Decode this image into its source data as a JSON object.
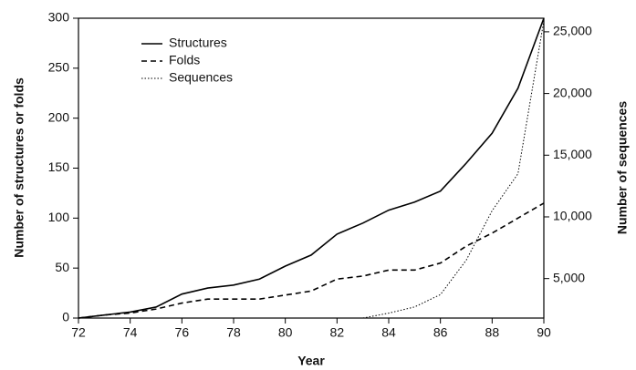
{
  "chart_data": {
    "type": "line",
    "xlabel": "Year",
    "ylabel": "Number of structures or folds",
    "y2label": "Number of sequences",
    "x": [
      72,
      73,
      74,
      75,
      76,
      77,
      78,
      79,
      80,
      81,
      82,
      83,
      84,
      85,
      86,
      87,
      88,
      89,
      90
    ],
    "xlim": [
      72,
      90
    ],
    "xticks": [
      72,
      74,
      76,
      78,
      80,
      82,
      84,
      86,
      88,
      90
    ],
    "ylim": [
      0,
      300
    ],
    "yticks": [
      0,
      50,
      100,
      150,
      200,
      250,
      300
    ],
    "y2lim": [
      1800,
      26100
    ],
    "y2ticks": [
      {
        "value": 5000,
        "label": "5,000"
      },
      {
        "value": 10000,
        "label": "10,000"
      },
      {
        "value": 15000,
        "label": "15,000"
      },
      {
        "value": 20000,
        "label": "20,000"
      },
      {
        "value": 25000,
        "label": "25,000"
      }
    ],
    "legend": "upper left",
    "series": [
      {
        "name": "Structures",
        "color": "#000000",
        "dash": "solid",
        "values": [
          0,
          3,
          6,
          11,
          24,
          30,
          33,
          39,
          52,
          63,
          84,
          95,
          108,
          116,
          127,
          155,
          185,
          230,
          300
        ]
      },
      {
        "name": "Folds",
        "color": "#000000",
        "dash": "dashed",
        "values": [
          0,
          3,
          5,
          9,
          15,
          19,
          19,
          19,
          23,
          27,
          39,
          42,
          48,
          48,
          55,
          72,
          85,
          100,
          115
        ]
      },
      {
        "name": "Sequences",
        "color": "#000000",
        "dash": "dotted",
        "axis": "y2",
        "values": [
          null,
          null,
          null,
          null,
          null,
          null,
          null,
          null,
          null,
          null,
          null,
          1800,
          2200,
          2700,
          3700,
          6500,
          10500,
          13500,
          25900
        ]
      }
    ]
  }
}
